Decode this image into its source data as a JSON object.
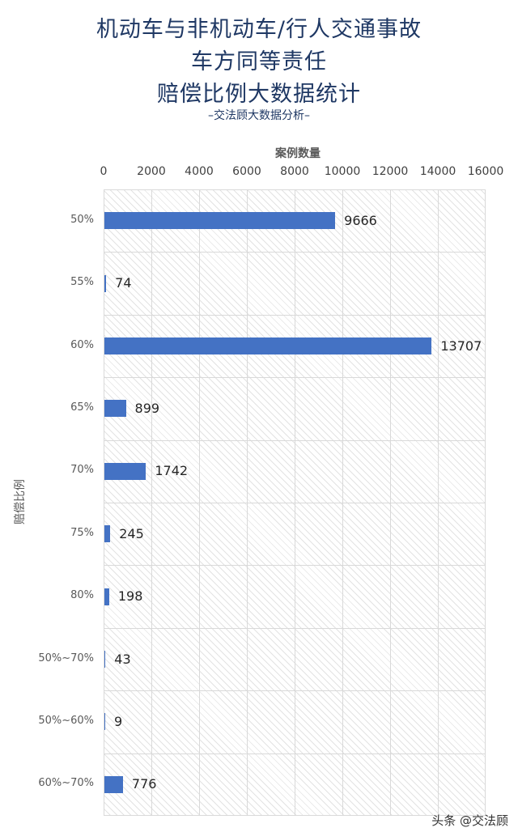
{
  "title_lines": [
    "机动车与非机动车/行人交通事故",
    "车方同等责任",
    "赔偿比例大数据统计"
  ],
  "subtitle": "–交法顾大数据分析–",
  "watermark": "头条 @交法顾",
  "chart_data": {
    "type": "bar",
    "orientation": "horizontal",
    "title": "机动车与非机动车/行人交通事故 车方同等责任 赔偿比例大数据统计",
    "xlabel": "案例数量",
    "ylabel": "赔偿比例",
    "xlim": [
      0,
      16000
    ],
    "x_ticks": [
      "0",
      "2000",
      "4000",
      "6000",
      "8000",
      "10000",
      "12000",
      "14000",
      "16000"
    ],
    "categories": [
      "50%",
      "55%",
      "60%",
      "65%",
      "70%",
      "75%",
      "80%",
      "50%~70%",
      "50%~60%",
      "60%~70%"
    ],
    "values": [
      9666,
      74,
      13707,
      899,
      1742,
      245,
      198,
      43,
      9,
      776
    ],
    "color": "#4472c4",
    "grid": true,
    "x_axis_position": "top"
  }
}
